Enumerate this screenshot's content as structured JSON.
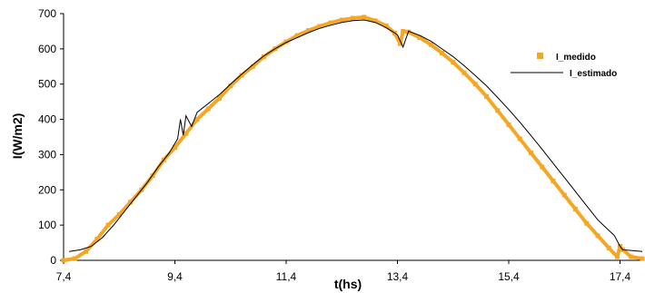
{
  "chart_data": {
    "type": "line",
    "title": "",
    "xlabel": "t(hs)",
    "ylabel": "I(W/m2)",
    "xlim": [
      7.4,
      17.8
    ],
    "ylim": [
      0,
      700
    ],
    "x_ticks": [
      "7,4",
      "9,4",
      "11,4",
      "13,4",
      "15,4",
      "17,4"
    ],
    "x_tick_values": [
      7.4,
      9.4,
      11.4,
      13.4,
      15.4,
      17.4
    ],
    "y_ticks": [
      "0",
      "100",
      "200",
      "300",
      "400",
      "500",
      "600",
      "700"
    ],
    "y_tick_values": [
      0,
      100,
      200,
      300,
      400,
      500,
      600,
      700
    ],
    "grid": false,
    "legend_position": "right",
    "series": [
      {
        "name": "I_medido",
        "style": "square-markers",
        "color": "#f5a623",
        "x": [
          7.4,
          7.6,
          7.8,
          8.0,
          8.2,
          8.4,
          8.6,
          8.8,
          9.0,
          9.2,
          9.4,
          9.6,
          9.8,
          10.0,
          10.2,
          10.4,
          10.6,
          10.8,
          11.0,
          11.2,
          11.4,
          11.6,
          11.8,
          12.0,
          12.2,
          12.4,
          12.6,
          12.8,
          13.0,
          13.2,
          13.35,
          13.45,
          13.5,
          13.6,
          13.8,
          14.0,
          14.2,
          14.4,
          14.6,
          14.8,
          15.0,
          15.2,
          15.4,
          15.6,
          15.8,
          16.0,
          16.2,
          16.4,
          16.6,
          16.8,
          17.0,
          17.2,
          17.35,
          17.4,
          17.45,
          17.6,
          17.8
        ],
        "y": [
          0,
          5,
          25,
          60,
          100,
          130,
          165,
          200,
          240,
          285,
          320,
          360,
          400,
          430,
          460,
          495,
          525,
          550,
          578,
          600,
          620,
          638,
          652,
          664,
          674,
          682,
          687,
          690,
          680,
          665,
          645,
          615,
          650,
          648,
          632,
          612,
          588,
          562,
          532,
          500,
          465,
          425,
          385,
          345,
          305,
          265,
          225,
          185,
          145,
          105,
          70,
          35,
          10,
          40,
          30,
          10,
          5
        ]
      },
      {
        "name": "I_estimado",
        "style": "line",
        "color": "#000000",
        "x": [
          7.5,
          7.7,
          7.9,
          8.1,
          8.3,
          8.5,
          8.7,
          8.9,
          9.1,
          9.3,
          9.45,
          9.5,
          9.55,
          9.6,
          9.7,
          9.8,
          10.0,
          10.2,
          10.4,
          10.6,
          10.8,
          11.0,
          11.2,
          11.4,
          11.6,
          11.8,
          12.0,
          12.2,
          12.4,
          12.6,
          12.8,
          13.0,
          13.2,
          13.4,
          13.5,
          13.6,
          13.8,
          14.0,
          14.2,
          14.4,
          14.6,
          14.8,
          15.0,
          15.2,
          15.4,
          15.6,
          15.8,
          16.0,
          16.2,
          16.4,
          16.6,
          16.8,
          17.0,
          17.2,
          17.3,
          17.4,
          17.45,
          17.6,
          17.8
        ],
        "y": [
          25,
          30,
          40,
          65,
          100,
          140,
          180,
          220,
          265,
          305,
          345,
          400,
          355,
          410,
          380,
          420,
          445,
          470,
          500,
          528,
          555,
          580,
          600,
          618,
          632,
          646,
          658,
          667,
          675,
          680,
          682,
          675,
          660,
          640,
          605,
          650,
          638,
          622,
          600,
          578,
          552,
          524,
          495,
          462,
          428,
          392,
          354,
          315,
          275,
          235,
          195,
          155,
          115,
          85,
          70,
          40,
          30,
          28,
          25
        ]
      }
    ]
  }
}
